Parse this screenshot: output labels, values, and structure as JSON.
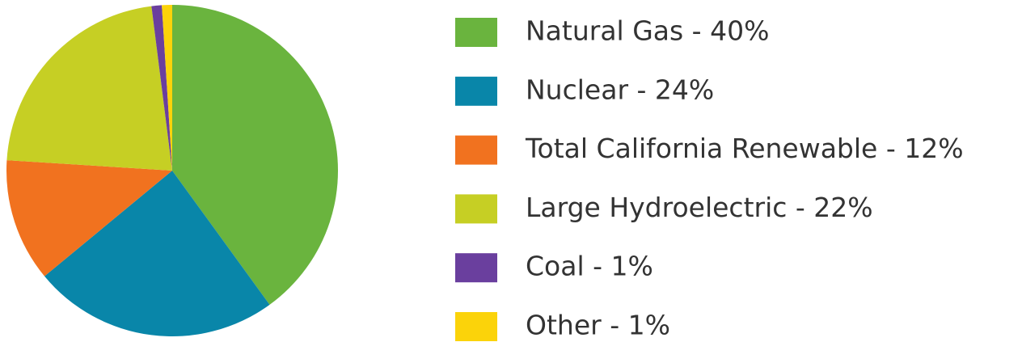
{
  "chart_data": {
    "type": "pie",
    "categories": [
      "Natural Gas - 40%",
      "Nuclear - 24%",
      "Total California Renewable - 12%",
      "Large Hydroelectric - 22%",
      "Coal - 1%",
      "Other - 1%"
    ],
    "values": [
      40,
      24,
      12,
      22,
      1,
      1
    ],
    "colors": [
      "#6ab43e",
      "#0986a9",
      "#f1721f",
      "#c6cf24",
      "#6a3f9e",
      "#fbd30a"
    ],
    "legend": "right"
  }
}
